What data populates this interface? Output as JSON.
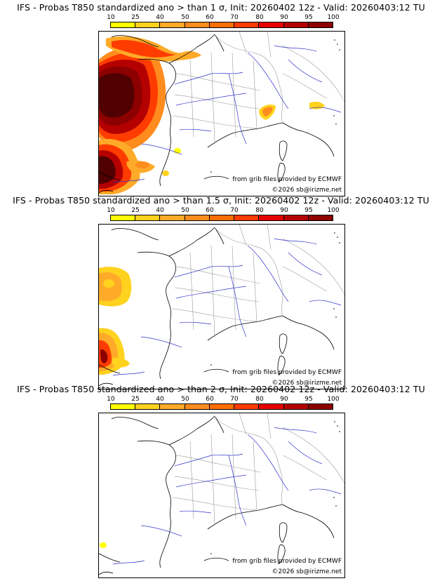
{
  "colorbar": {
    "labels": [
      "10",
      "25",
      "40",
      "50",
      "60",
      "70",
      "80",
      "90",
      "95",
      "100"
    ],
    "colors": [
      "#ffff00",
      "#ffd21e",
      "#ffaa28",
      "#ff8c1e",
      "#ff6e00",
      "#ff3c00",
      "#e60000",
      "#b40000",
      "#8c0000",
      "#500000"
    ]
  },
  "panels": [
    {
      "title": "IFS - Probas T850  standardized ano > than 1 σ, Init: 20260402 12z - Valid: 20260403:12 TU",
      "credit_source": "from grib files provided by ECMWF",
      "credit_copyright": "©2026 sb@irizme.net"
    },
    {
      "title": "IFS - Probas T850  standardized ano > than 1.5 σ, Init: 20260402 12z - Valid: 20260403:12 TU",
      "credit_source": "from grib files provided by ECMWF",
      "credit_copyright": "©2026 sb@irizme.net"
    },
    {
      "title": "IFS - Probas T850  standardized ano > than 2 σ, Init: 20260402 12z - Valid: 20260403:12 TU",
      "credit_source": "from grib files provided by ECMWF",
      "credit_copyright": "©2026 sb@irizme.net"
    }
  ]
}
